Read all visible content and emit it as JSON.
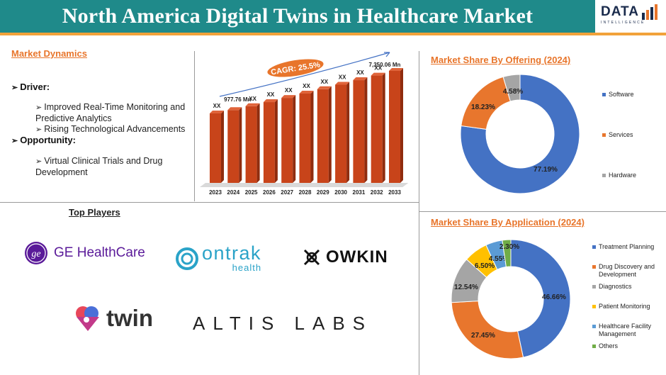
{
  "header": {
    "title": "North America Digital Twins in Healthcare Market",
    "logo_word": "DATA",
    "logo_sub": "INTELLIGENCE"
  },
  "dynamics": {
    "heading": "Market Dynamics",
    "driver_label": "Driver:",
    "drivers": [
      "Improved Real-Time Monitoring and Predictive Analytics",
      "Rising Technological Advancements"
    ],
    "opportunity_label": "Opportunity:",
    "opportunities": [
      "Virtual Clinical Trials and Drug Development"
    ]
  },
  "players": {
    "heading": "Top Players",
    "logos": [
      {
        "name": "GE HealthCare",
        "icon": "ge-monogram-icon"
      },
      {
        "name": "ontrak",
        "sub": "health",
        "icon": "ontrak-swirl-icon"
      },
      {
        "name": "OWKIN",
        "icon": "owkin-cross-icon"
      },
      {
        "name": "twin",
        "icon": "twin-heart-icon"
      },
      {
        "name": "ALTIS LABS"
      }
    ]
  },
  "colors": {
    "title_bar": "#1f8a8a",
    "accent": "#e8752b",
    "bar": "#c8441a",
    "software": "#4472c4",
    "services": "#e8762d",
    "hardware": "#a5a5a5",
    "patient_monitoring": "#ffc000",
    "healthcare_facility": "#5b9bd5",
    "others": "#70ad47"
  },
  "chart_data": [
    {
      "type": "bar",
      "categories": [
        "2023",
        "2024",
        "2025",
        "2026",
        "2027",
        "2028",
        "2029",
        "2030",
        "2031",
        "2032",
        "2033"
      ],
      "values": [
        null,
        977.76,
        null,
        null,
        null,
        null,
        null,
        null,
        null,
        null,
        7350.06
      ],
      "data_labels": [
        "XX",
        "977.76 Mn",
        "XX",
        "XX",
        "XX",
        "XX",
        "XX",
        "XX",
        "XX",
        "XX",
        "7,350.06 Mn"
      ],
      "annotation": "CAGR: 25.5%"
    },
    {
      "type": "pie",
      "title": "Market Share By Offering (2024)",
      "labels": [
        "Software",
        "Services",
        "Hardware"
      ],
      "values": [
        77.19,
        18.23,
        4.58
      ],
      "value_labels": [
        "77.19%",
        "18.23%",
        "4.58%"
      ],
      "donut": true,
      "legend": "right"
    },
    {
      "type": "pie",
      "title": "Market Share By Application (2024)",
      "labels": [
        "Treatment Planning",
        "Drug Discovery and Development",
        "Diagnostics",
        "Patient Monitoring",
        "Healthcare Facility Management",
        "Others"
      ],
      "values": [
        46.66,
        27.45,
        12.54,
        6.5,
        4.55,
        2.3
      ],
      "value_labels": [
        "46.66%",
        "27.45%",
        "12.54%",
        "6.50%",
        "4.55%",
        "2.30%"
      ],
      "donut": true,
      "legend": "right"
    }
  ]
}
